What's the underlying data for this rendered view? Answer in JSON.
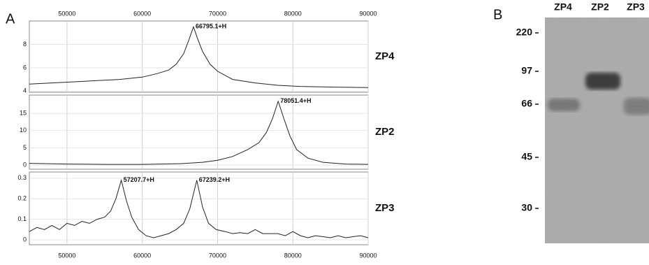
{
  "panel_labels": [
    "A",
    "B"
  ],
  "chart_data": [
    {
      "type": "line",
      "label": "ZP4",
      "xaxis": "top",
      "grid": true,
      "color": "#222222",
      "xlim": [
        45000,
        90000
      ],
      "xticks": [
        50000,
        60000,
        70000,
        80000,
        90000
      ],
      "ylim": [
        3.9,
        10
      ],
      "yticks": [
        4,
        6,
        8
      ],
      "x": [
        45000,
        48000,
        51000,
        54000,
        57000,
        60000,
        62000,
        63500,
        64500,
        65500,
        66200,
        66795,
        67400,
        68000,
        69000,
        70000,
        72000,
        75000,
        78000,
        81000,
        85000,
        90000
      ],
      "values": [
        4.6,
        4.7,
        4.8,
        4.9,
        5.0,
        5.2,
        5.5,
        5.8,
        6.3,
        7.2,
        8.4,
        9.5,
        8.4,
        7.4,
        6.3,
        5.7,
        5.0,
        4.7,
        4.5,
        4.4,
        4.35,
        4.3
      ],
      "annotations": [
        {
          "text": "66795.1+H",
          "x": 66795.1
        }
      ]
    },
    {
      "type": "line",
      "label": "ZP2",
      "grid": true,
      "color": "#222222",
      "xlim": [
        45000,
        90000
      ],
      "xticks": [
        50000,
        60000,
        70000,
        80000,
        90000
      ],
      "ylim": [
        -1.2,
        20.3
      ],
      "yticks": [
        0,
        5,
        10,
        15
      ],
      "x": [
        45000,
        50000,
        55000,
        60000,
        65000,
        68000,
        70000,
        72000,
        74000,
        75500,
        76500,
        77300,
        78051,
        78800,
        79600,
        80500,
        82000,
        84000,
        87000,
        90000
      ],
      "values": [
        0.5,
        0.3,
        0.2,
        0.2,
        0.4,
        0.8,
        1.4,
        2.5,
        4.5,
        6.5,
        9.5,
        13.5,
        18.5,
        13.5,
        8.5,
        4.5,
        2.0,
        0.8,
        0.3,
        0.2
      ],
      "annotations": [
        {
          "text": "78051.4+H",
          "x": 78051.4
        }
      ]
    },
    {
      "type": "line",
      "label": "ZP3",
      "xaxis": "bottom",
      "grid": true,
      "color": "#222222",
      "xlim": [
        45000,
        90000
      ],
      "xticks": [
        50000,
        60000,
        70000,
        80000,
        90000
      ],
      "ylim": [
        -0.024,
        0.33
      ],
      "yticks": [
        0,
        0.1,
        0.2,
        0.3
      ],
      "x": [
        45000,
        46000,
        47000,
        48000,
        49000,
        50000,
        51000,
        52000,
        53000,
        54000,
        55000,
        55800,
        56500,
        57207.7,
        57900,
        58600,
        59500,
        60500,
        61500,
        62500,
        63500,
        64500,
        65500,
        66300,
        67239.2,
        68000,
        68800,
        69800,
        71000,
        72000,
        73000,
        74000,
        75000,
        76000,
        77000,
        78000,
        79000,
        80000,
        81000,
        82000,
        83000,
        84000,
        85000,
        86000,
        87000,
        88000,
        89000,
        90000
      ],
      "values": [
        0.04,
        0.06,
        0.05,
        0.07,
        0.05,
        0.08,
        0.07,
        0.09,
        0.08,
        0.1,
        0.11,
        0.14,
        0.2,
        0.29,
        0.19,
        0.11,
        0.05,
        0.02,
        0.01,
        0.02,
        0.03,
        0.05,
        0.08,
        0.15,
        0.29,
        0.16,
        0.08,
        0.05,
        0.04,
        0.03,
        0.035,
        0.03,
        0.05,
        0.03,
        0.03,
        0.03,
        0.02,
        0.04,
        0.02,
        0.01,
        0.02,
        0.015,
        0.01,
        0.02,
        0.01,
        0.015,
        0.02,
        0.01
      ],
      "annotations": [
        {
          "text": "57207.7+H",
          "x": 57207.7
        },
        {
          "text": "67239.2+H",
          "x": 67239.2
        }
      ]
    }
  ],
  "gel": {
    "lanes": [
      "ZP4",
      "ZP2",
      "ZP3"
    ],
    "markers": [
      220,
      97,
      66,
      45,
      30
    ]
  }
}
